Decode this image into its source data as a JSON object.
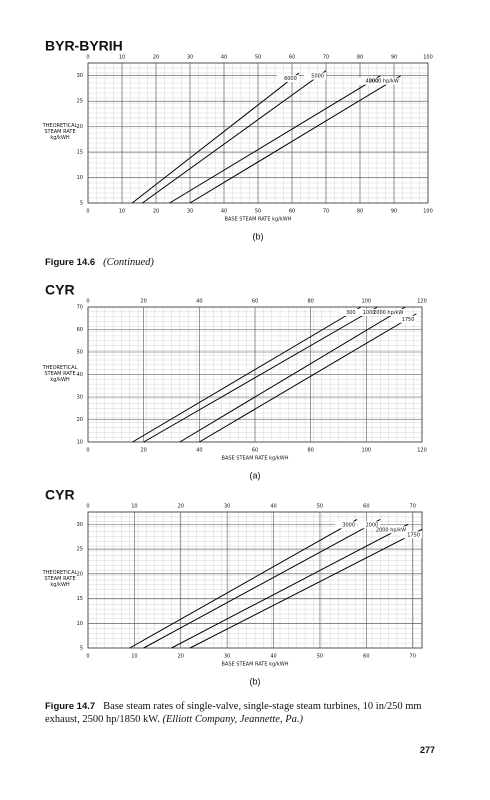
{
  "chart_data": [
    {
      "type": "line",
      "title": "BYR-BYRIH",
      "label": "(b)",
      "x_label": "BASE STEAM RATE kg/kWH",
      "y_label": "THEORETICAL STEAM RATE kg/kWH",
      "xlim": [
        0,
        100
      ],
      "xticks": [
        0,
        10,
        20,
        30,
        40,
        50,
        60,
        70,
        80,
        90,
        100
      ],
      "ylim": [
        5,
        32.5
      ],
      "yticks": [
        5,
        10,
        15,
        20,
        25,
        30
      ],
      "grid": true,
      "series": [
        {
          "name": "6000",
          "color": "#000000",
          "x": [
            13,
            62
          ],
          "values": [
            5,
            30.5
          ]
        },
        {
          "name": "5000",
          "color": "#000000",
          "x": [
            16,
            70
          ],
          "values": [
            5,
            31
          ]
        },
        {
          "name": "4000",
          "color": "#000000",
          "x": [
            24,
            86
          ],
          "values": [
            5,
            30
          ]
        },
        {
          "name": "2000 hp/kW",
          "color": "#000000",
          "x": [
            30,
            92
          ],
          "values": [
            5,
            30
          ]
        }
      ]
    },
    {
      "type": "line",
      "title": "CYR",
      "label": "(a)",
      "x_label": "BASE STEAM RATE kg/kWH",
      "y_label": "THEORETICAL STEAM RATE kg/kWH",
      "xlim": [
        0,
        120
      ],
      "xticks": [
        0,
        20,
        40,
        60,
        80,
        100,
        120
      ],
      "ylim": [
        10,
        70
      ],
      "yticks": [
        10,
        20,
        30,
        40,
        50,
        60,
        70
      ],
      "grid": true,
      "series": [
        {
          "name": "3000",
          "color": "#000000",
          "x": [
            16,
            98
          ],
          "values": [
            10,
            70
          ]
        },
        {
          "name": "1000",
          "color": "#000000",
          "x": [
            20,
            104
          ],
          "values": [
            10,
            70
          ]
        },
        {
          "name": "2000 hp/kW",
          "color": "#000000",
          "x": [
            33,
            114
          ],
          "values": [
            10,
            70
          ]
        },
        {
          "name": "1750",
          "color": "#000000",
          "x": [
            40,
            118
          ],
          "values": [
            10,
            67
          ]
        }
      ]
    },
    {
      "type": "line",
      "title": "CYR",
      "label": "(b)",
      "x_label": "BASE STEAM RATE kg/kWH",
      "y_label": "THEORETICAL STEAM RATE kg/kWH",
      "xlim": [
        0,
        72
      ],
      "xticks": [
        0,
        10,
        20,
        30,
        40,
        50,
        60,
        70
      ],
      "ylim": [
        5,
        32.5
      ],
      "yticks": [
        5,
        10,
        15,
        20,
        25,
        30
      ],
      "grid": true,
      "series": [
        {
          "name": "3000",
          "color": "#000000",
          "x": [
            9,
            58
          ],
          "values": [
            5,
            31
          ]
        },
        {
          "name": "2000",
          "color": "#000000",
          "x": [
            12,
            63
          ],
          "values": [
            5,
            31
          ]
        },
        {
          "name": "2000 hp/kW",
          "color": "#000000",
          "x": [
            18,
            69
          ],
          "values": [
            5,
            30
          ]
        },
        {
          "name": "1750",
          "color": "#000000",
          "x": [
            22,
            72
          ],
          "values": [
            5,
            29
          ]
        }
      ]
    }
  ],
  "figure_14_6": {
    "number": "Figure 14.6",
    "text": "(Continued)"
  },
  "figure_14_7": {
    "number": "Figure 14.7",
    "text": "Base steam rates of single-valve, single-stage steam turbines, 10 in/250 mm exhaust, 2500 hp/1850 kW.",
    "credit": "(Elliott Company, Jeannette, Pa.)"
  },
  "page_number": "277"
}
